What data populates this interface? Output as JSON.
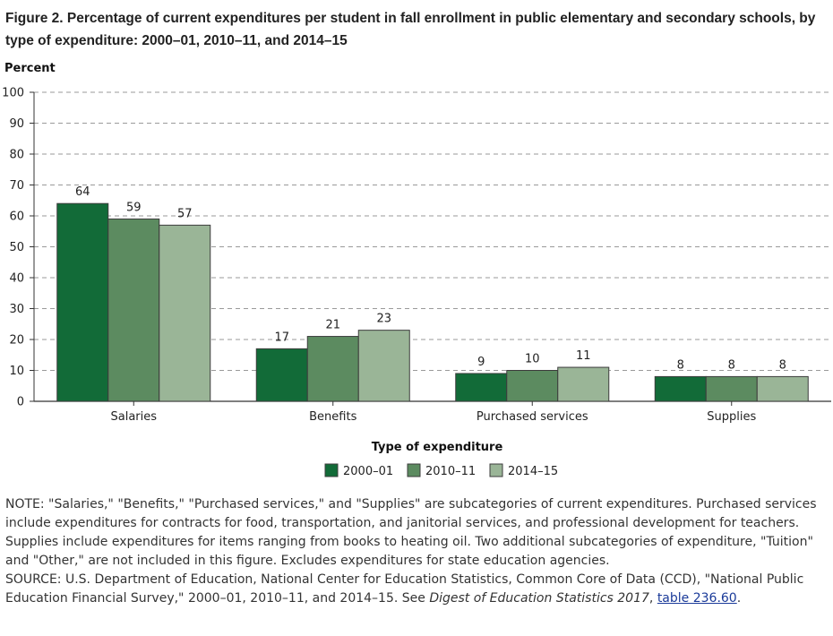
{
  "figure": {
    "title": "Figure 2. Percentage of current expenditures per student in fall enrollment in public elementary and secondary schools, by type of expenditure: 2000–01, 2010–11, and 2014–15"
  },
  "chart_data": {
    "type": "bar",
    "title": "Figure 2. Percentage of current expenditures per student in fall enrollment in public elementary and secondary schools, by type of expenditure: 2000–01, 2010–11, and 2014–15",
    "ylabel": "Percent",
    "xlabel": "Type of expenditure",
    "ylim": [
      0,
      100
    ],
    "yticks": [
      0,
      10,
      20,
      30,
      40,
      50,
      60,
      70,
      80,
      90,
      100
    ],
    "grid": true,
    "legend_position": "bottom-center",
    "categories": [
      "Salaries",
      "Benefits",
      "Purchased services",
      "Supplies"
    ],
    "series": [
      {
        "name": "2000–01",
        "color": "#126b38",
        "values": [
          64,
          17,
          9,
          8
        ],
        "labels": [
          "64",
          "17",
          "9",
          "8"
        ]
      },
      {
        "name": "2010–11",
        "color": "#5c8b60",
        "values": [
          59,
          21,
          10,
          8
        ],
        "labels": [
          "59",
          "21",
          "10",
          "8"
        ]
      },
      {
        "name": "2014–15",
        "color": "#9ab597",
        "values": [
          57,
          23,
          11,
          8
        ],
        "labels": [
          "57",
          "23",
          "11",
          "8"
        ]
      }
    ]
  },
  "note": {
    "text": "NOTE: \"Salaries,\" \"Benefits,\" \"Purchased services,\" and \"Supplies\" are subcategories of current expenditures. Purchased services include expenditures for contracts for food, transportation, and janitorial services, and professional development for teachers. Supplies include expenditures for items ranging from books to heating oil. Two additional subcategories of expenditure, \"Tuition\" and \"Other,\" are not included in this figure. Excludes expenditures for state education agencies.",
    "source_prefix": "SOURCE: U.S. Department of Education, National Center for Education Statistics, Common Core of Data (CCD), \"National Public Education Financial Survey,\" 2000–01, 2010–11, and 2014–15. See ",
    "source_italic": "Digest of Education Statistics 2017",
    "source_comma": ", ",
    "link_text": "table 236.60",
    "source_end": "."
  }
}
